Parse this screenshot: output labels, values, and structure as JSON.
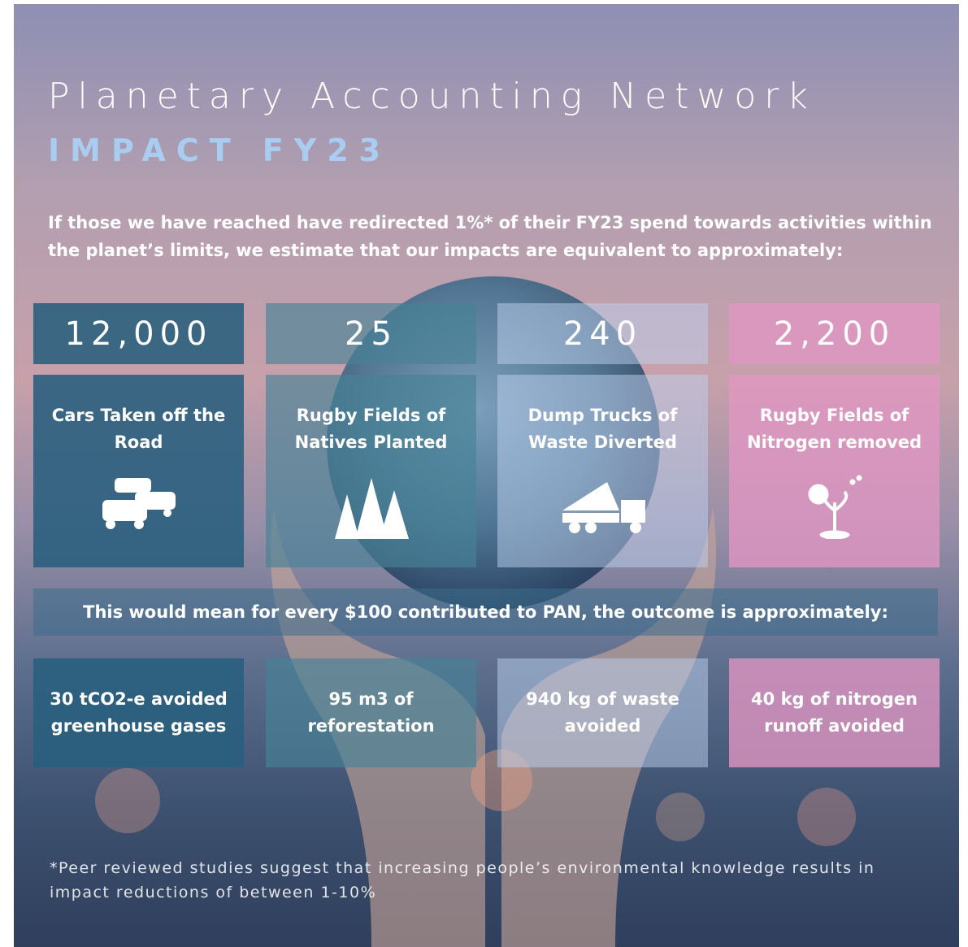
{
  "header": {
    "title": "Planetary Accounting Network",
    "subtitle": "IMPACT FY23"
  },
  "intro": "If those we have reached have redirected 1%* of their FY23 spend towards activities within the planet’s limits, we estimate that our impacts are equivalent to approximately:",
  "stats": [
    {
      "number": "12,000",
      "label": "Cars Taken off the Road"
    },
    {
      "number": "25",
      "label": "Rugby Fields of Natives Planted"
    },
    {
      "number": "240",
      "label": "Dump Trucks of Waste Diverted"
    },
    {
      "number": "2,200",
      "label": "Rugby Fields of Nitrogen removed"
    }
  ],
  "summary": "This would mean for every $100 contributed to PAN, the outcome is approximately:",
  "outcomes": [
    "30 tCO2-e avoided greenhouse gases",
    "95 m3 of reforestation",
    "940 kg of waste avoided",
    "40 kg of nitrogen runoff avoided"
  ],
  "footnote": "*Peer reviewed studies suggest that increasing people’s environmental knowledge results in impact reductions of between 1-10%"
}
